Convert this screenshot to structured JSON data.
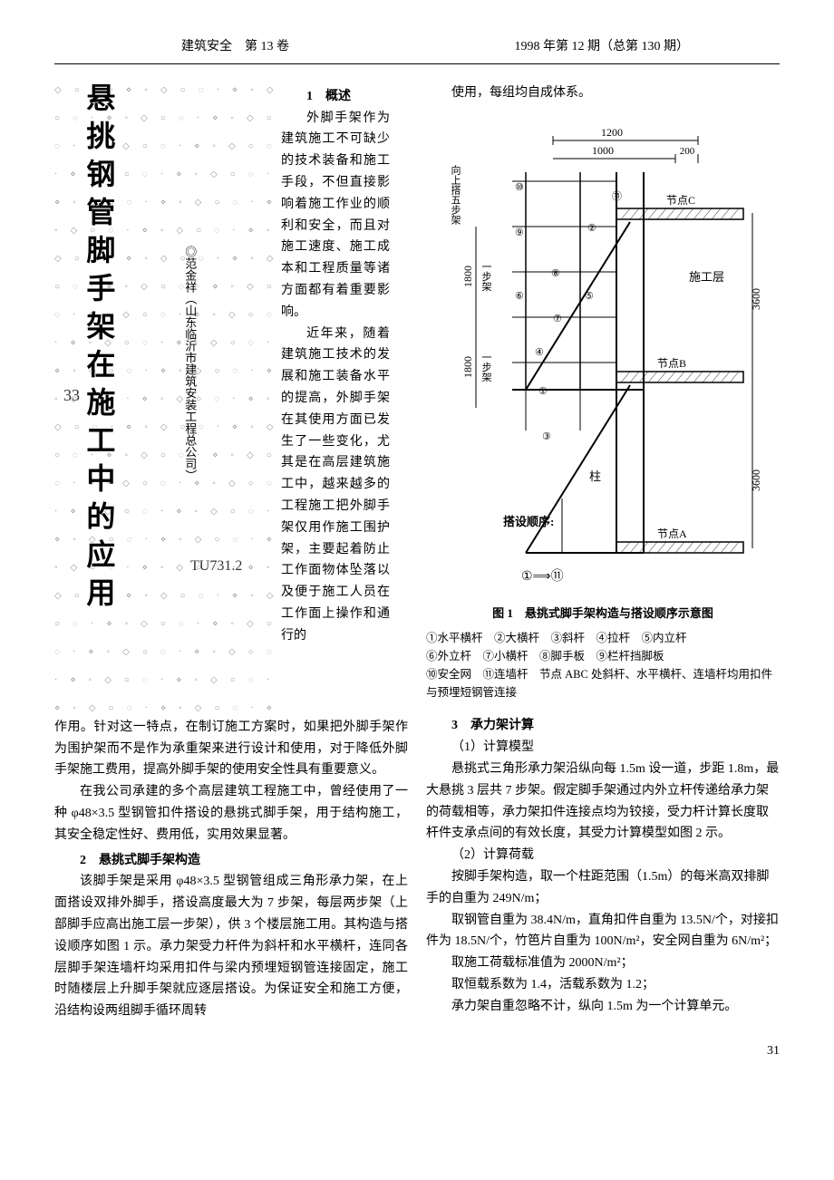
{
  "header": {
    "left": "建筑安全　第 13 卷",
    "right": "1998 年第 12 期（总第 130 期）"
  },
  "title": "悬挑钢管脚手架在施工中的应用",
  "author": "◎范金祥（山东临沂市建筑安装工程总公司）",
  "handwritten_margin": "33",
  "handwritten_code": "TU731.2",
  "intro": {
    "section1_heading": "1　概述",
    "para1": "外脚手架作为建筑施工不可缺少的技术装备和施工手段，不但直接影响着施工作业的顺利和安全，而且对施工速度、施工成本和工程质量等诸方面都有着重要影响。",
    "para2": "近年来，随着建筑施工技术的发展和施工装备水平的提高，外脚手架在其使用方面已发生了一些变化，尤其是在高层建筑施工中，越来越多的工程施工把外脚手架仅用作施工围护架，主要起着防止工作面物体坠落以及便于施工人员在工作面上操作和通行的"
  },
  "left_continued": {
    "para3": "作用。针对这一特点，在制订施工方案时，如果把外脚手架作为围护架而不是作为承重架来进行设计和使用，对于降低外脚手架施工费用，提高外脚手架的使用安全性具有重要意义。",
    "para4": "在我公司承建的多个高层建筑工程施工中，曾经使用了一种 φ48×3.5 型钢管扣件搭设的悬挑式脚手架，用于结构施工，其安全稳定性好、费用低，实用效果显著。",
    "section2_heading": "2　悬挑式脚手架构造",
    "para5": "该脚手架是采用 φ48×3.5 型钢管组成三角形承力架，在上面搭设双排外脚手，搭设高度最大为 7 步架，每层两步架（上部脚手应高出施工层一步架），供 3 个楼层施工用。其构造与搭设顺序如图 1 示。承力架受力杆件为斜杆和水平横杆，连同各层脚手架连墙杆均采用扣件与梁内预埋短钢管连接固定，施工时随楼层上升脚手架就应逐层搭设。为保证安全和施工方便，沿结构设两组脚手循环周转"
  },
  "right": {
    "intro_right": "使用，每组均自成体系。",
    "figure1": {
      "caption": "图 1　悬挑式脚手架构造与搭设顺序示意图",
      "legend_line1": "①水平横杆　②大横杆　③斜杆　④拉杆　⑤内立杆",
      "legend_line2": "⑥外立杆　⑦小横杆　⑧脚手板　⑨栏杆挡脚板",
      "legend_line3": "⑩安全网　⑪连墙杆　节点 ABC 处斜杆、水平横杆、连墙杆均用扣件与预埋短钢管连接",
      "dim_1200": "1200",
      "dim_1000": "1000",
      "dim_200": "200",
      "dim_1800_1": "1800",
      "dim_1800_2": "1800",
      "dim_3600_1": "3600",
      "dim_3600_2": "3600",
      "label_up5": "向上搭五步架",
      "label_step1": "一步架",
      "label_step2": "一步架",
      "label_nodeA": "节点A",
      "label_nodeB": "节点B",
      "label_nodeC": "节点C",
      "label_floor": "施工层",
      "label_column": "柱",
      "label_order": "搭设顺序:",
      "label_order_arrow": "①⟹⑪",
      "circles": [
        "①",
        "②",
        "③",
        "④",
        "⑤",
        "⑥",
        "⑦",
        "⑧",
        "⑨",
        "⑩",
        "⑪"
      ]
    },
    "section3_heading": "3　承力架计算",
    "sub1": "（1）计算模型",
    "para6": "悬挑式三角形承力架沿纵向每 1.5m 设一道，步距 1.8m，最大悬挑 3 层共 7 步架。假定脚手架通过内外立杆传递给承力架的荷载相等，承力架扣件连接点均为铰接，受力杆计算长度取杆件支承点间的有效长度，其受力计算模型如图 2 示。",
    "sub2": "（2）计算荷载",
    "para7": "按脚手架构造，取一个柱距范围（1.5m）的每米高双排脚手的自重为 249N/m；",
    "para8": "取钢管自重为 38.4N/m，直角扣件自重为 13.5N/个，对接扣件为 18.5N/个，竹笆片自重为 100N/m²，安全网自重为 6N/m²；",
    "para9": "取施工荷载标准值为 2000N/m²；",
    "para10": "取恒载系数为 1.4，活载系数为 1.2；",
    "para11": "承力架自重忽略不计，纵向 1.5m 为一个计算单元。"
  },
  "page_number": "31"
}
